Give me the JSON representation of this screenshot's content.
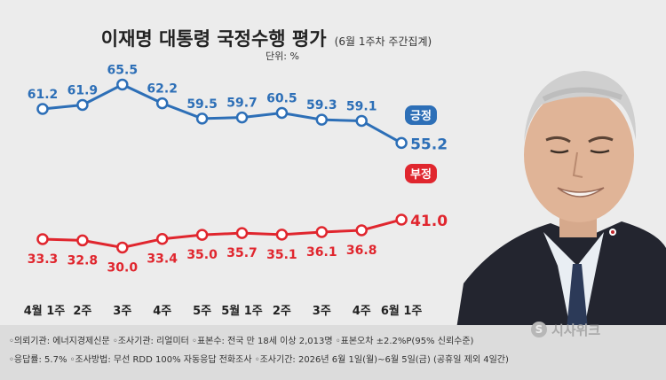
{
  "title": "이재명 대통령 국정수행 평가",
  "subtitle": "(6월 1주차 주간집계)",
  "unit": "단위: %",
  "chart_data": {
    "type": "line",
    "title": "이재명 대통령 국정수행 평가",
    "subtitle": "(6월 1주차 주간집계)",
    "unit": "%",
    "categories": [
      "4월 1주",
      "2주",
      "3주",
      "4주",
      "5주",
      "5월 1주",
      "2주",
      "3주",
      "4주",
      "6월 1주"
    ],
    "series": [
      {
        "name": "긍정",
        "color": "#2d6fb7",
        "values": [
          61.2,
          61.9,
          65.5,
          62.2,
          59.5,
          59.7,
          60.5,
          59.3,
          59.1,
          55.2
        ],
        "labels": [
          "61.2",
          "61.9",
          "65.5",
          "62.2",
          "59.5",
          "59.7",
          "60.5",
          "59.3",
          "59.1",
          "55.2"
        ]
      },
      {
        "name": "부정",
        "color": "#e0262e",
        "values": [
          33.3,
          32.8,
          30.0,
          33.4,
          35.0,
          35.7,
          35.1,
          36.1,
          36.8,
          41.0
        ],
        "labels": [
          "33.3",
          "32.8",
          "30.0",
          "33.4",
          "35.0",
          "35.7",
          "35.1",
          "36.1",
          "36.8",
          "41.0"
        ]
      }
    ],
    "legend": "end-of-line",
    "grid": false
  },
  "footer": {
    "line1": "◦의뢰기관: 에너지경제신문 ◦조사기관: 리얼미터 ◦표본수: 전국 만 18세 이상 2,013명 ◦표본오차 ±2.2%P(95% 신뢰수준)",
    "line2": "◦응답률: 5.7% ◦조사방법: 무선 RDD 100% 자동응답 전화조사 ◦조사기간: 2026년 6월 1일(월)~6월 5일(금) (공휴일 제외 4일간)"
  },
  "logo": {
    "mark": "S",
    "text": "시사위크"
  },
  "colors": {
    "background": "#ececec",
    "footer": "#dcdcdc",
    "positive": "#2d6fb7",
    "negative": "#e0262e"
  }
}
